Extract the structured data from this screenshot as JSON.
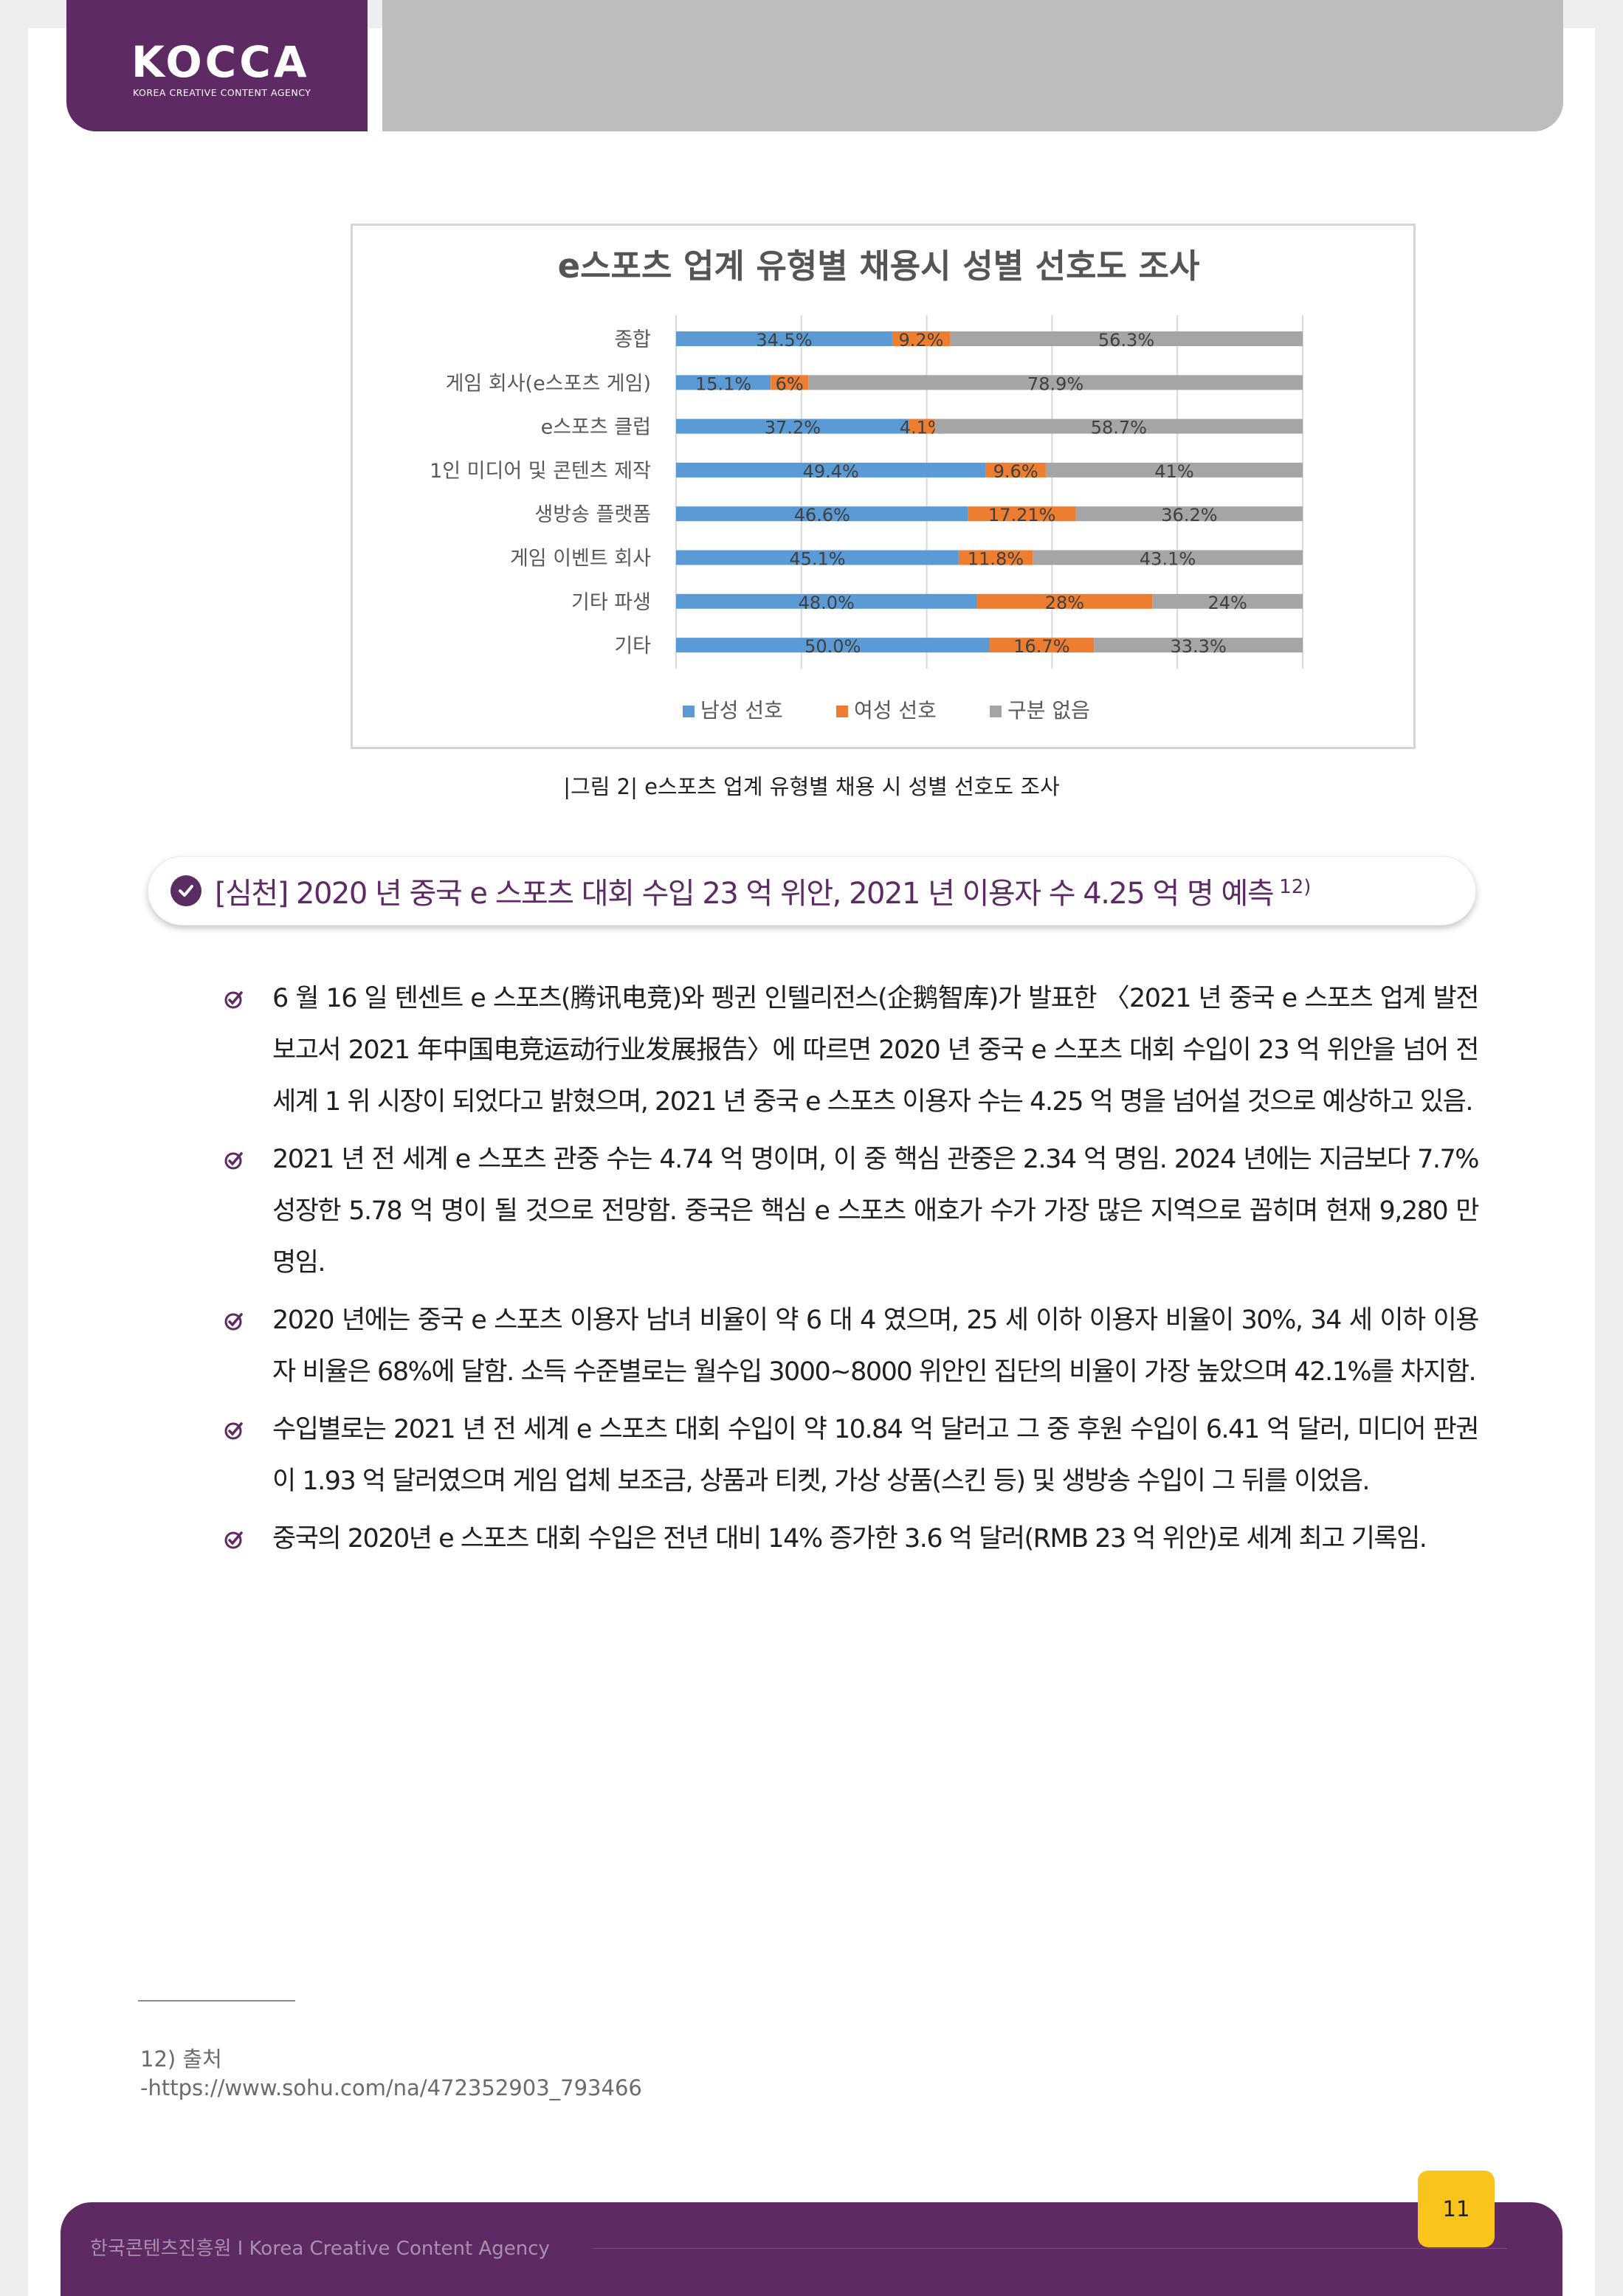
{
  "header": {
    "logo_text": "KOCCA",
    "logo_subtitle": "KOREA CREATIVE CONTENT AGENCY"
  },
  "chart_data": {
    "type": "bar",
    "stacked": true,
    "orientation": "horizontal",
    "title": "e스포츠 업계 유형별 채용시 성별 선호도 조사",
    "categories": [
      "종합",
      "게임 회사(e스포츠 게임)",
      "e스포츠 클럽",
      "1인 미디어 및 콘텐츠 제작",
      "생방송 플랫폼",
      "게임 이벤트 회사",
      "기타 파생",
      "기타"
    ],
    "series": [
      {
        "name": "남성 선호",
        "color": "#5b9bd5",
        "values": [
          34.5,
          15.1,
          37.2,
          49.4,
          46.6,
          45.1,
          48.0,
          50.0
        ],
        "labels": [
          "34.5%",
          "15.1%",
          "37.2%",
          "49.4%",
          "46.6%",
          "45.1%",
          "48.0%",
          "50.0%"
        ]
      },
      {
        "name": "여성 선호",
        "color": "#ed7d31",
        "values": [
          9.2,
          6,
          4.1,
          9.6,
          17.21,
          11.8,
          28,
          16.7
        ],
        "labels": [
          "9.2%",
          "6%",
          "4.1%",
          "9.6%",
          "17.21%",
          "11.8%",
          "28%",
          "16.7%"
        ]
      },
      {
        "name": "구분 없음",
        "color": "#a5a5a5",
        "values": [
          56.3,
          78.9,
          58.7,
          41,
          36.2,
          43.1,
          24,
          33.3
        ],
        "labels": [
          "56.3%",
          "78.9%",
          "58.7%",
          "41%",
          "36.2%",
          "43.1%",
          "24%",
          "33.3%"
        ]
      }
    ],
    "xlim": [
      0,
      100
    ],
    "grid": true,
    "legend": "bottom"
  },
  "figure_caption": "|그림 2| e스포츠 업계 유형별 채용 시 성별 선호도 조사",
  "section": {
    "title": "[심천] 2020 년 중국 e 스포츠 대회 수입 23 억 위안, 2021 년 이용자 수 4.25 억 명 예측",
    "footnote_ref": "12)"
  },
  "bullets": [
    "6 월 16 일 텐센트 e 스포츠(腾讯电竞)와 펭귄 인텔리전스(企鹅智库)가 발표한 〈2021 년 중국 e 스포츠 업계 발전 보고서 2021 年中国电竞运动行业发展报告〉에 따르면 2020 년 중국 e 스포츠 대회 수입이 23 억 위안을 넘어 전 세계 1 위 시장이 되었다고 밝혔으며, 2021 년 중국 e 스포츠 이용자 수는 4.25 억 명을 넘어설 것으로 예상하고 있음.",
    "2021 년 전 세계 e 스포츠 관중 수는 4.74 억 명이며, 이 중 핵심 관중은 2.34 억 명임. 2024 년에는 지금보다 7.7% 성장한 5.78 억 명이 될 것으로 전망함. 중국은 핵심 e 스포츠 애호가 수가 가장 많은 지역으로 꼽히며 현재 9,280 만 명임.",
    "2020 년에는 중국 e 스포츠 이용자 남녀 비율이 약 6 대 4 였으며, 25 세 이하 이용자 비율이 30%, 34 세 이하 이용자 비율은 68%에 달함. 소득 수준별로는 월수입 3000~8000 위안인 집단의 비율이 가장 높았으며 42.1%를 차지함.",
    "수입별로는 2021 년 전 세계 e 스포츠 대회 수입이 약 10.84 억 달러고 그 중 후원 수입이 6.41 억 달러, 미디어 판권이 1.93 억 달러였으며 게임 업체 보조금, 상품과 티켓, 가상 상품(스킨 등) 및 생방송 수입이 그 뒤를 이었음.",
    "중국의 2020년 e 스포츠 대회 수입은 전년 대비 14% 증가한 3.6 억 달러(RMB 23 억 위안)로 세계 최고 기록임."
  ],
  "footnote": {
    "label": "12) 출처",
    "url": "-https://www.sohu.com/na/472352903_793466"
  },
  "footer": {
    "text": "한국콘텐츠진흥원 I Korea Creative Content Agency",
    "page_number": "11"
  }
}
